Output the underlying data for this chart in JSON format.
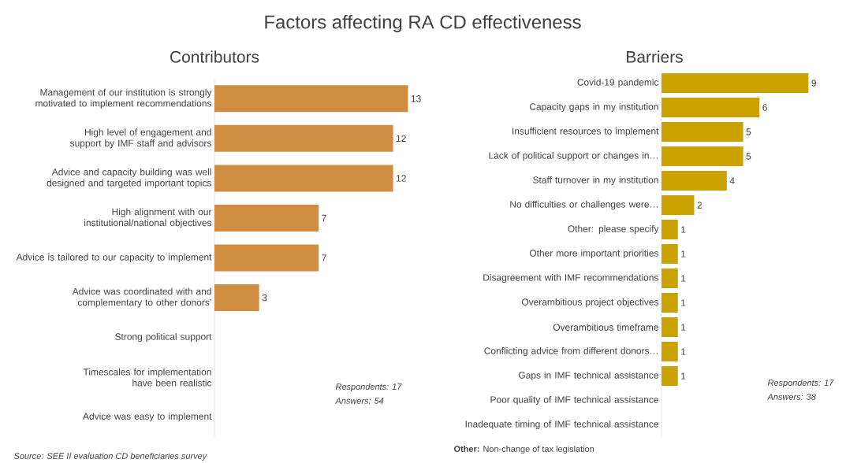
{
  "chart_data": [
    {
      "type": "bar",
      "orientation": "horizontal",
      "title": "Factors affecting RA CD effectiveness",
      "subtitle": "Contributors",
      "categories": [
        "Management of our institution is strongly motivated to implement recommendations",
        "High level of engagement and support by IMF staff and advisors",
        "Advice and capacity building was well designed and targeted important topics",
        "High alignment with our institutional/national objectives",
        "Advice is tailored to our capacity to implement",
        "Advice was coordinated with and complementary to other donors’",
        "Strong political support",
        "Timescales for implementation have been realistic",
        "Advice was easy to implement"
      ],
      "values": [
        13,
        12,
        12,
        7,
        7,
        3,
        0,
        0,
        0
      ],
      "value_labels": [
        "13",
        "12",
        "12",
        "7",
        "7",
        "3",
        null,
        null,
        null
      ],
      "color": "#d08c40",
      "annotations": [
        "Respondents: 17",
        "Answers: 54",
        "Source: SEE II evaluation CD beneficiaries survey"
      ]
    },
    {
      "type": "bar",
      "orientation": "horizontal",
      "title": "Barriers",
      "categories": [
        "Covid-19 pandemic",
        "Capacity gaps in my institution",
        "Insufficient resources to implement",
        "Lack of political support or changes in…",
        "Staff turnover in my institution",
        "No difficulties or challenges were…",
        "Other: please specify",
        "Other more important priorities",
        "Disagreement with IMF recommendations",
        "Overambitious project objectives",
        "Overambitious timeframe",
        "Conflicting advice from different donors…",
        "Gaps in IMF technical assistance",
        "Poor quality of IMF technical assistance",
        "Inadequate timing of IMF technical assistance"
      ],
      "values": [
        9,
        6,
        5,
        5,
        4,
        2,
        1,
        1,
        1,
        1,
        1,
        1,
        1,
        0,
        0
      ],
      "value_labels": [
        "9",
        "6",
        "5",
        "5",
        "4",
        "2",
        "1",
        "1",
        "1",
        "1",
        "1",
        "1",
        "1",
        null,
        null
      ],
      "color": "#c9a200",
      "annotations": [
        "Respondents: 17",
        "Answers: 38",
        "**Other:** Non-change of tax legislation"
      ]
    }
  ]
}
